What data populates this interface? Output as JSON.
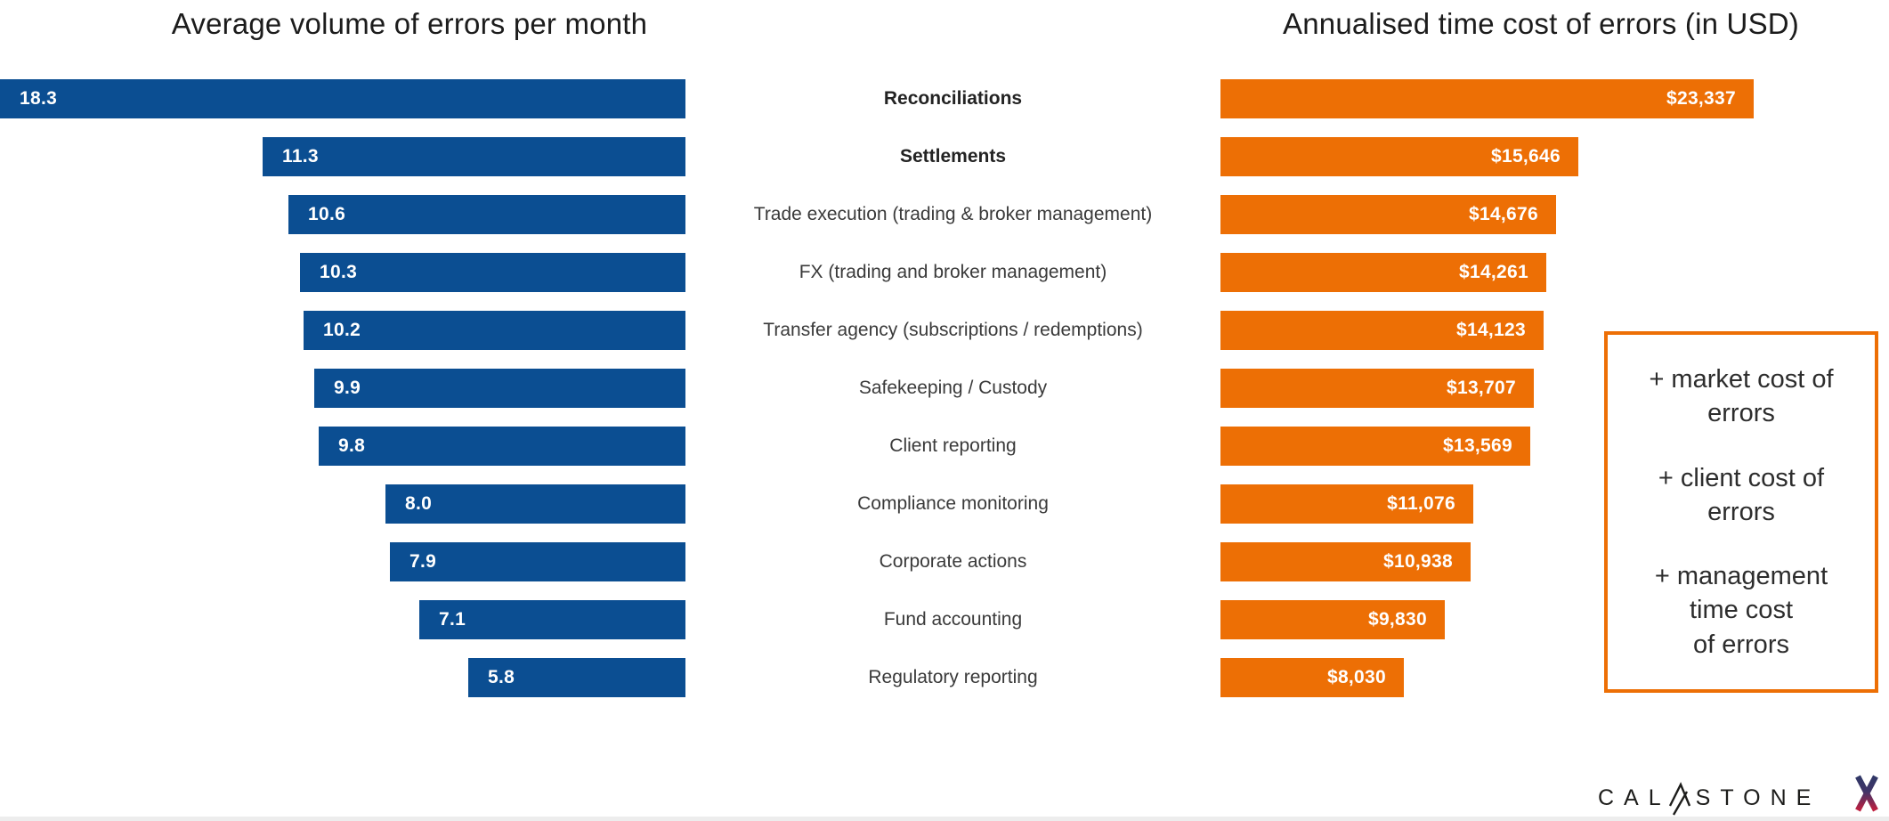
{
  "chart_data": [
    {
      "type": "bar",
      "orientation": "horizontal-right-aligned",
      "title": "Average volume of errors per month",
      "categories": [
        "Reconciliations",
        "Settlements",
        "Trade execution (trading & broker management)",
        "FX (trading and broker management)",
        "Transfer agency (subscriptions / redemptions)",
        "Safekeeping / Custody",
        "Client reporting",
        "Compliance monitoring",
        "Corporate actions",
        "Fund accounting",
        "Regulatory reporting"
      ],
      "values": [
        18.3,
        11.3,
        10.6,
        10.3,
        10.2,
        9.9,
        9.8,
        8.0,
        7.9,
        7.1,
        5.8
      ],
      "value_labels": [
        "18.3",
        "11.3",
        "10.6",
        "10.3",
        "10.2",
        "9.9",
        "9.8",
        "8.0",
        "7.9",
        "7.1",
        "5.8"
      ],
      "bar_color": "#0b4e92",
      "xlim": [
        0,
        18.3
      ],
      "grid": false,
      "legend": false
    },
    {
      "type": "bar",
      "orientation": "horizontal-left-aligned",
      "title": "Annualised time cost of errors (in USD)",
      "categories": [
        "Reconciliations",
        "Settlements",
        "Trade execution (trading & broker management)",
        "FX (trading and broker management)",
        "Transfer agency (subscriptions / redemptions)",
        "Safekeeping / Custody",
        "Client reporting",
        "Compliance monitoring",
        "Corporate actions",
        "Fund accounting",
        "Regulatory reporting"
      ],
      "values": [
        23337,
        15646,
        14676,
        14261,
        14123,
        13707,
        13569,
        11076,
        10938,
        9830,
        8030
      ],
      "value_labels": [
        "$23,337",
        "$15,646",
        "$14,676",
        "$14,261",
        "$14,123",
        "$13,707",
        "$13,569",
        "$11,076",
        "$10,938",
        "$9,830",
        "$8,030"
      ],
      "bar_color": "#ed6f05",
      "xlim": [
        0,
        23337
      ],
      "grid": false,
      "legend": false
    }
  ],
  "category_styles": [
    {
      "label": "Reconciliations",
      "bold": true
    },
    {
      "label": "Settlements",
      "bold": true
    },
    {
      "label": "Trade execution (trading & broker management)",
      "bold": false
    },
    {
      "label": "FX (trading and broker management)",
      "bold": false
    },
    {
      "label": "Transfer agency (subscriptions / redemptions)",
      "bold": false
    },
    {
      "label": "Safekeeping / Custody",
      "bold": false
    },
    {
      "label": "Client reporting",
      "bold": false
    },
    {
      "label": "Compliance monitoring",
      "bold": false
    },
    {
      "label": "Corporate actions",
      "bold": false
    },
    {
      "label": "Fund accounting",
      "bold": false
    },
    {
      "label": "Regulatory reporting",
      "bold": false
    }
  ],
  "annotation_box": {
    "border_color": "#ed6f05",
    "items": [
      "+ market cost of\nerrors",
      "+ client cost of\nerrors",
      "+ management\ntime cost\nof errors"
    ]
  },
  "logo": {
    "part1": "CAL",
    "part2": "STONE",
    "x_mark_top_color": "#2f3867",
    "x_mark_bottom_color": "#c11f3e"
  },
  "colors": {
    "volume_bar": "#0b4e92",
    "cost_bar": "#ed6f05",
    "title_text": "#1c1c1c"
  }
}
